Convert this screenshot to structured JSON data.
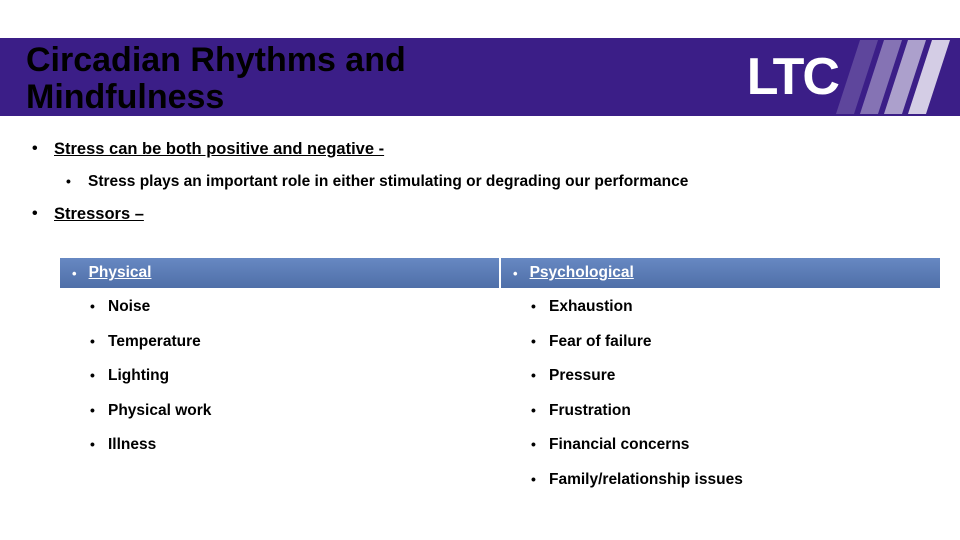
{
  "title": "Circadian Rhythms and Mindfulness",
  "logo": {
    "text": "LTC"
  },
  "colors": {
    "banner": "#3b1e87",
    "column_header": "#5b7bb4",
    "text": "#000000",
    "white": "#ffffff"
  },
  "bullets": {
    "stress_heading": "Stress can be both positive and negative -",
    "stress_detail": "Stress plays an important role in either stimulating or degrading our performance",
    "stressors_heading": "Stressors –"
  },
  "columns": {
    "left": {
      "header": "Physical",
      "items": [
        "Noise",
        "Temperature",
        "Lighting",
        "Physical work",
        "Illness"
      ]
    },
    "right": {
      "header": "Psychological",
      "items": [
        "Exhaustion",
        "Fear of failure",
        "Pressure",
        "Frustration",
        "Financial concerns",
        "Family/relationship issues"
      ]
    }
  }
}
